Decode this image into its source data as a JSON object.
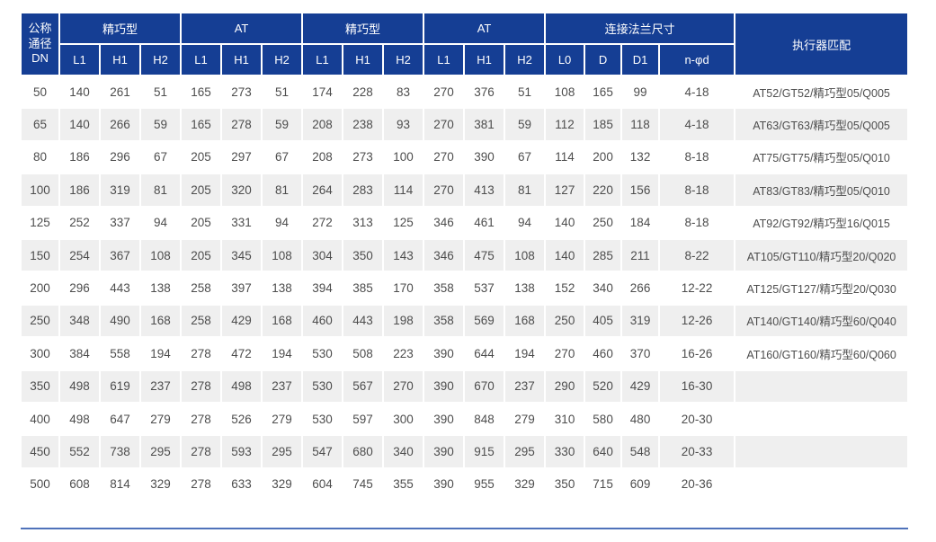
{
  "colors": {
    "header_bg": "#153e94",
    "header_text": "#ffffff",
    "stripe_bg": "#efefef",
    "row_text": "#4d4d4d",
    "bottom_line": "#4f72ba"
  },
  "table": {
    "dn_header_lines": [
      "公称",
      "通径",
      "DN"
    ],
    "groups": [
      {
        "label": "精巧型",
        "cols": [
          "L1",
          "H1",
          "H2"
        ]
      },
      {
        "label": "AT",
        "cols": [
          "L1",
          "H1",
          "H2"
        ]
      },
      {
        "label": "精巧型",
        "cols": [
          "L1",
          "H1",
          "H2"
        ]
      },
      {
        "label": "AT",
        "cols": [
          "L1",
          "H1",
          "H2"
        ]
      },
      {
        "label": "连接法兰尺寸",
        "cols": [
          "L0",
          "D",
          "D1",
          "n-φd"
        ]
      }
    ],
    "actuator_header": "执行器匹配",
    "rows": [
      {
        "dn": "50",
        "values": [
          "140",
          "261",
          "51",
          "165",
          "273",
          "51",
          "174",
          "228",
          "83",
          "270",
          "376",
          "51",
          "108",
          "165",
          "99",
          "4-18"
        ],
        "actuator": "AT52/GT52/精巧型05/Q005"
      },
      {
        "dn": "65",
        "values": [
          "140",
          "266",
          "59",
          "165",
          "278",
          "59",
          "208",
          "238",
          "93",
          "270",
          "381",
          "59",
          "112",
          "185",
          "118",
          "4-18"
        ],
        "actuator": "AT63/GT63/精巧型05/Q005"
      },
      {
        "dn": "80",
        "values": [
          "186",
          "296",
          "67",
          "205",
          "297",
          "67",
          "208",
          "273",
          "100",
          "270",
          "390",
          "67",
          "114",
          "200",
          "132",
          "8-18"
        ],
        "actuator": "AT75/GT75/精巧型05/Q010"
      },
      {
        "dn": "100",
        "values": [
          "186",
          "319",
          "81",
          "205",
          "320",
          "81",
          "264",
          "283",
          "114",
          "270",
          "413",
          "81",
          "127",
          "220",
          "156",
          "8-18"
        ],
        "actuator": "AT83/GT83/精巧型05/Q010"
      },
      {
        "dn": "125",
        "values": [
          "252",
          "337",
          "94",
          "205",
          "331",
          "94",
          "272",
          "313",
          "125",
          "346",
          "461",
          "94",
          "140",
          "250",
          "184",
          "8-18"
        ],
        "actuator": "AT92/GT92/精巧型16/Q015"
      },
      {
        "dn": "150",
        "values": [
          "254",
          "367",
          "108",
          "205",
          "345",
          "108",
          "304",
          "350",
          "143",
          "346",
          "475",
          "108",
          "140",
          "285",
          "211",
          "8-22"
        ],
        "actuator": "AT105/GT110/精巧型20/Q020"
      },
      {
        "dn": "200",
        "values": [
          "296",
          "443",
          "138",
          "258",
          "397",
          "138",
          "394",
          "385",
          "170",
          "358",
          "537",
          "138",
          "152",
          "340",
          "266",
          "12-22"
        ],
        "actuator": "AT125/GT127/精巧型20/Q030"
      },
      {
        "dn": "250",
        "values": [
          "348",
          "490",
          "168",
          "258",
          "429",
          "168",
          "460",
          "443",
          "198",
          "358",
          "569",
          "168",
          "250",
          "405",
          "319",
          "12-26"
        ],
        "actuator": "AT140/GT140/精巧型60/Q040"
      },
      {
        "dn": "300",
        "values": [
          "384",
          "558",
          "194",
          "278",
          "472",
          "194",
          "530",
          "508",
          "223",
          "390",
          "644",
          "194",
          "270",
          "460",
          "370",
          "16-26"
        ],
        "actuator": "AT160/GT160/精巧型60/Q060"
      },
      {
        "dn": "350",
        "values": [
          "498",
          "619",
          "237",
          "278",
          "498",
          "237",
          "530",
          "567",
          "270",
          "390",
          "670",
          "237",
          "290",
          "520",
          "429",
          "16-30"
        ],
        "actuator": ""
      },
      {
        "dn": "400",
        "values": [
          "498",
          "647",
          "279",
          "278",
          "526",
          "279",
          "530",
          "597",
          "300",
          "390",
          "848",
          "279",
          "310",
          "580",
          "480",
          "20-30"
        ],
        "actuator": ""
      },
      {
        "dn": "450",
        "values": [
          "552",
          "738",
          "295",
          "278",
          "593",
          "295",
          "547",
          "680",
          "340",
          "390",
          "915",
          "295",
          "330",
          "640",
          "548",
          "20-33"
        ],
        "actuator": ""
      },
      {
        "dn": "500",
        "values": [
          "608",
          "814",
          "329",
          "278",
          "633",
          "329",
          "604",
          "745",
          "355",
          "390",
          "955",
          "329",
          "350",
          "715",
          "609",
          "20-36"
        ],
        "actuator": ""
      }
    ]
  }
}
